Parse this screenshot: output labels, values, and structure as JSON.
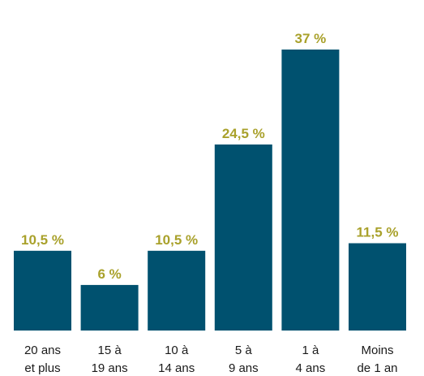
{
  "chart_data": {
    "type": "bar",
    "categories": [
      [
        "20 ans",
        "et plus"
      ],
      [
        "15 à",
        "19 ans"
      ],
      [
        "10 à",
        "14 ans"
      ],
      [
        "5 à",
        "9 ans"
      ],
      [
        "1 à",
        "4 ans"
      ],
      [
        "Moins",
        "de 1 an"
      ]
    ],
    "values": [
      10.5,
      6,
      10.5,
      24.5,
      37,
      11.5
    ],
    "value_labels": [
      "10,5 %",
      "6 %",
      "10,5 %",
      "24,5 %",
      "37 %",
      "11,5 %"
    ],
    "title": "",
    "xlabel": "",
    "ylabel": "",
    "ylim": [
      0,
      37
    ],
    "grid": false,
    "legend": "none",
    "colors": {
      "bar": "#00516f",
      "value_label": "#a9a12b",
      "category_label": "#1a1a1a"
    }
  }
}
